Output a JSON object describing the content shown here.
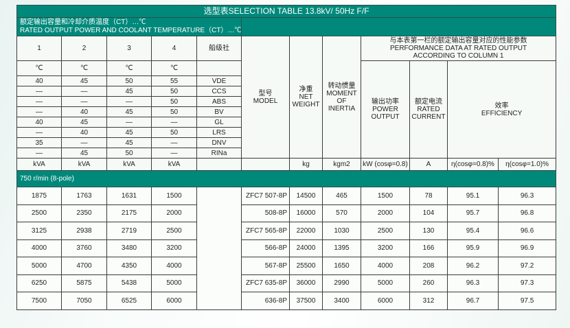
{
  "title": "选型表SELECTION TABLE 13.8kV/ 50Hz  F/F",
  "rated_header": {
    "cn": "额定输出容量和冷却介质温度（CT）…℃",
    "en": "RATED OUTPUT POWER AND COOLANT TEMPERATURE（CT）…℃"
  },
  "columns": [
    "1",
    "2",
    "3",
    "4"
  ],
  "class_society_label": "船级社",
  "deg_unit": "℃",
  "class_rows": [
    {
      "v": [
        "40",
        "45",
        "50",
        "55"
      ],
      "society": "VDE"
    },
    {
      "v": [
        "—",
        "—",
        "45",
        "50"
      ],
      "society": "CCS"
    },
    {
      "v": [
        "—",
        "—",
        "—",
        "50"
      ],
      "society": "ABS"
    },
    {
      "v": [
        "—",
        "40",
        "45",
        "50"
      ],
      "society": "BV"
    },
    {
      "v": [
        "40",
        "45",
        "—",
        "—"
      ],
      "society": "GL"
    },
    {
      "v": [
        "—",
        "40",
        "45",
        "50"
      ],
      "society": "LRS"
    },
    {
      "v": [
        "35",
        "—",
        "45",
        "—"
      ],
      "society": "DNV"
    },
    {
      "v": [
        "—",
        "45",
        "50",
        "—"
      ],
      "society": "RINa"
    }
  ],
  "model_header": {
    "cn": "型号",
    "en": "MODEL"
  },
  "weight_header": {
    "cn": "净重",
    "en1": "NET",
    "en2": "WEIGHT"
  },
  "inertia_header": {
    "cn": "转动惯量",
    "en1": "MOMENT",
    "en2": "OF",
    "en3": "INERTIA"
  },
  "perf_header": {
    "cn": "与本表第一栏的额定输出容量对应的性能参数",
    "en1": "PERFORMANCE DATA AT RATED OUTPUT",
    "en2": "ACCORDING TO COLUMN 1"
  },
  "power_header": {
    "cn": "输出功率",
    "en1": "POWER",
    "en2": "OUTPUT"
  },
  "current_header": {
    "cn": "额定电流",
    "en1": "RATED",
    "en2": "CURRENT"
  },
  "eff_header": {
    "cn": "效率",
    "en": "EFFICIENCY"
  },
  "units": {
    "kva": "kVA",
    "kg": "kg",
    "kgm2": "kgm2",
    "kw": "kW (cosφ=0.8)",
    "a": "A",
    "eta08": "η(cosφ=0.8)%",
    "eta10": "η(cosφ=1.0)%"
  },
  "section": "750 r/min (8-pole)",
  "rows": [
    [
      "1875",
      "1763",
      "1631",
      "1500",
      "ZFC7 507-8P",
      "14500",
      "465",
      "1500",
      "78",
      "95.1",
      "96.3"
    ],
    [
      "2500",
      "2350",
      "2175",
      "2000",
      "508-8P",
      "16000",
      "570",
      "2000",
      "104",
      "95.7",
      "96.8"
    ],
    [
      "3125",
      "2938",
      "2719",
      "2500",
      "ZFC7 565-8P",
      "22000",
      "1030",
      "2500",
      "130",
      "95.4",
      "96.6"
    ],
    [
      "4000",
      "3760",
      "3480",
      "3200",
      "566-8P",
      "24000",
      "1395",
      "3200",
      "166",
      "95.9",
      "96.9"
    ],
    [
      "5000",
      "4700",
      "4350",
      "4000",
      "567-8P",
      "25500",
      "1650",
      "4000",
      "208",
      "96.2",
      "97.2"
    ],
    [
      "6250",
      "5875",
      "5438",
      "5000",
      "ZFC7 635-8P",
      "36000",
      "2990",
      "5000",
      "260",
      "96.3",
      "97.3"
    ],
    [
      "7500",
      "7050",
      "6525",
      "6000",
      "636-8P",
      "37500",
      "3400",
      "6000",
      "312",
      "96.7",
      "97.5"
    ]
  ]
}
